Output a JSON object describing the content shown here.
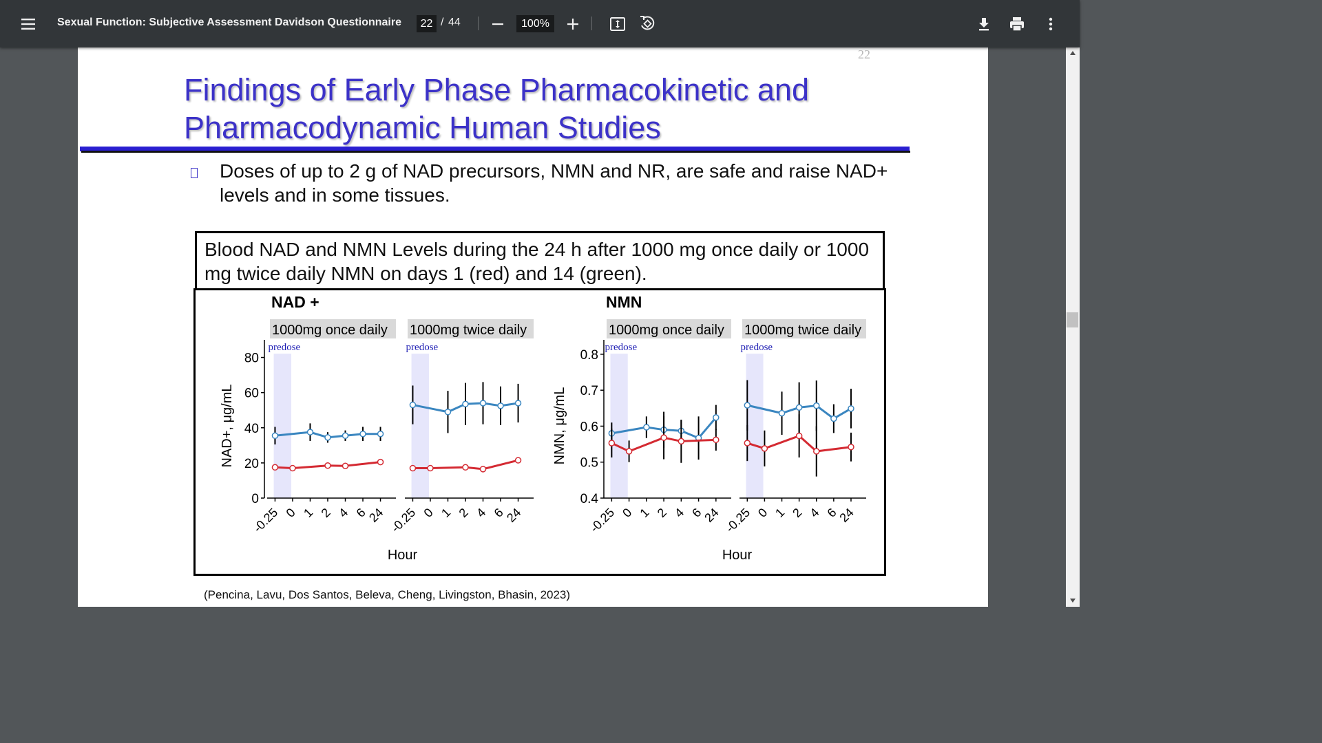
{
  "toolbar": {
    "title": "Sexual Function: Subjective Assessment Davidson Questionnaire",
    "page_current": "22",
    "page_separator": "/",
    "page_total": "44",
    "zoom": "100%",
    "icons": [
      "menu-icon",
      "zoom-out-icon",
      "zoom-in-icon",
      "fit-page-icon",
      "rotate-icon",
      "download-icon",
      "print-icon",
      "more-vert-icon"
    ]
  },
  "page": {
    "page_number": "22",
    "title": "Findings of Early Phase Pharmacokinetic and Pharmacodynamic Human Studies",
    "bullet": "Doses of up to 2 g of NAD precursors, NMN and NR, are safe and raise NAD+ levels and in some tissues.",
    "figure_caption": "Blood NAD and NMN Levels during the 24 h after 1000 mg once daily or 1000 mg twice daily NMN on days 1 (red) and 14 (green).",
    "citation": "(Pencina, Lavu, Dos Santos, Beleva, Cheng, Livingston, Bhasin, 2023)"
  },
  "chart_data": [
    {
      "type": "line",
      "title": "NAD +",
      "ylabel": "NAD+,  μg/mL",
      "xlabel": "Hour",
      "ylim": [
        0,
        90
      ],
      "yticks": [
        0,
        20,
        40,
        60,
        80
      ],
      "x_ticks": [
        "-0.25",
        "0",
        "1",
        "2",
        "4",
        "6",
        "24"
      ],
      "shaded_band": {
        "label": "predose",
        "color": "#e6e6fb"
      },
      "series_colors": {
        "red": "#d42a32",
        "blue": "#3a86c0"
      },
      "panels": [
        {
          "label": "1000mg once daily",
          "series": [
            {
              "color": "red",
              "points": [
                {
                  "x": "-0.25",
                  "y": 17.5
                },
                {
                  "x": "0",
                  "y": 17
                },
                {
                  "x": "2",
                  "y": 18.5
                },
                {
                  "x": "4",
                  "y": 18.3
                },
                {
                  "x": "24",
                  "y": 20.5
                }
              ]
            },
            {
              "color": "blue",
              "points": [
                {
                  "x": "-0.25",
                  "y": 35.5,
                  "err": 5
                },
                {
                  "x": "1",
                  "y": 37.5,
                  "err": 5
                },
                {
                  "x": "2",
                  "y": 34.5,
                  "err": 3
                },
                {
                  "x": "4",
                  "y": 35.5,
                  "err": 3
                },
                {
                  "x": "6",
                  "y": 36.5,
                  "err": 4
                },
                {
                  "x": "24",
                  "y": 36.5,
                  "err": 4
                }
              ]
            }
          ]
        },
        {
          "label": "1000mg twice daily",
          "series": [
            {
              "color": "red",
              "points": [
                {
                  "x": "-0.25",
                  "y": 17
                },
                {
                  "x": "0",
                  "y": 17
                },
                {
                  "x": "2",
                  "y": 17.5
                },
                {
                  "x": "4",
                  "y": 16.5
                },
                {
                  "x": "24",
                  "y": 21.5
                }
              ]
            },
            {
              "color": "blue",
              "points": [
                {
                  "x": "-0.25",
                  "y": 53,
                  "err": 11
                },
                {
                  "x": "1",
                  "y": 49,
                  "err": 12
                },
                {
                  "x": "2",
                  "y": 53.5,
                  "err": 12
                },
                {
                  "x": "4",
                  "y": 54,
                  "err": 12
                },
                {
                  "x": "6",
                  "y": 52.5,
                  "err": 11
                },
                {
                  "x": "24",
                  "y": 54,
                  "err": 11
                }
              ]
            }
          ]
        }
      ]
    },
    {
      "type": "line",
      "title": "NMN",
      "ylabel": "NMN,  μg/mL",
      "xlabel": "Hour",
      "ylim": [
        0.4,
        0.84
      ],
      "yticks": [
        0.4,
        0.5,
        0.6,
        0.7,
        0.8
      ],
      "x_ticks": [
        "-0.25",
        "0",
        "1",
        "2",
        "4",
        "6",
        "24"
      ],
      "shaded_band": {
        "label": "predose",
        "color": "#e6e6fb"
      },
      "series_colors": {
        "red": "#d42a32",
        "blue": "#3a86c0"
      },
      "panels": [
        {
          "label": "1000mg once daily",
          "series": [
            {
              "color": "red",
              "points": [
                {
                  "x": "-0.25",
                  "y": 0.553,
                  "err": 0.04
                },
                {
                  "x": "0",
                  "y": 0.53,
                  "err": 0.03
                },
                {
                  "x": "2",
                  "y": 0.568,
                  "err": 0.06
                },
                {
                  "x": "4",
                  "y": 0.558,
                  "err": 0.06
                },
                {
                  "x": "24",
                  "y": 0.562,
                  "err": 0.03
                }
              ]
            },
            {
              "color": "blue",
              "points": [
                {
                  "x": "-0.25",
                  "y": 0.58,
                  "err": 0.03
                },
                {
                  "x": "1",
                  "y": 0.597,
                  "err": 0.03
                },
                {
                  "x": "2",
                  "y": 0.59,
                  "err": 0.05
                },
                {
                  "x": "4",
                  "y": 0.587,
                  "err": 0.03
                },
                {
                  "x": "6",
                  "y": 0.567,
                  "err": 0.06
                },
                {
                  "x": "24",
                  "y": 0.624,
                  "err": 0.035
                }
              ]
            }
          ]
        },
        {
          "label": "1000mg twice daily",
          "series": [
            {
              "color": "red",
              "points": [
                {
                  "x": "-0.25",
                  "y": 0.553,
                  "err": 0.05
                },
                {
                  "x": "0",
                  "y": 0.538,
                  "err": 0.05
                },
                {
                  "x": "2",
                  "y": 0.573,
                  "err": 0.06
                },
                {
                  "x": "4",
                  "y": 0.53,
                  "err": 0.07
                },
                {
                  "x": "24",
                  "y": 0.542,
                  "err": 0.04
                }
              ]
            },
            {
              "color": "blue",
              "points": [
                {
                  "x": "-0.25",
                  "y": 0.658,
                  "err": 0.07
                },
                {
                  "x": "1",
                  "y": 0.636,
                  "err": 0.06
                },
                {
                  "x": "2",
                  "y": 0.652,
                  "err": 0.07
                },
                {
                  "x": "4",
                  "y": 0.657,
                  "err": 0.07
                },
                {
                  "x": "6",
                  "y": 0.621,
                  "err": 0.04
                },
                {
                  "x": "24",
                  "y": 0.649,
                  "err": 0.055
                }
              ]
            }
          ]
        }
      ]
    }
  ]
}
